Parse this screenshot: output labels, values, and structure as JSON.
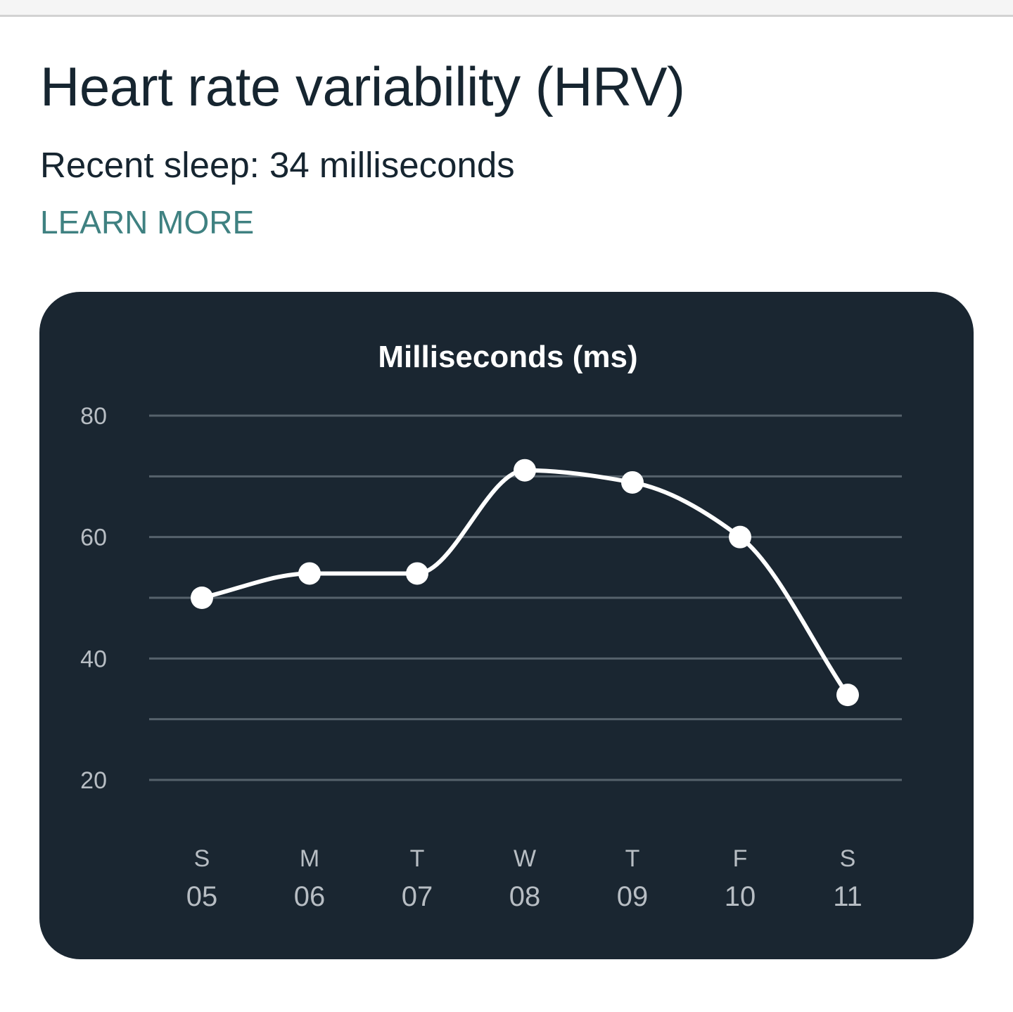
{
  "header": {
    "title": "Heart rate variability (HRV)",
    "subtitle": "Recent sleep: 34 milliseconds",
    "learn_more": "LEARN MORE"
  },
  "colors": {
    "title_text": "#162530",
    "link": "#3f8181",
    "card_background": "#1a2631",
    "gridline": "#56626c",
    "series": "#ffffff",
    "tick_text": "#b7bdc3"
  },
  "chart_data": {
    "type": "line",
    "title": "Milliseconds (ms)",
    "xlabel": "",
    "ylabel": "",
    "ylim": [
      20,
      80
    ],
    "y_ticks": [
      20,
      40,
      60,
      80
    ],
    "y_gridlines": [
      20,
      30,
      40,
      50,
      60,
      70,
      80
    ],
    "grid": true,
    "smooth": true,
    "categories": [
      {
        "day": "S",
        "date": "05"
      },
      {
        "day": "M",
        "date": "06"
      },
      {
        "day": "T",
        "date": "07"
      },
      {
        "day": "W",
        "date": "08"
      },
      {
        "day": "T",
        "date": "09"
      },
      {
        "day": "F",
        "date": "10"
      },
      {
        "day": "S",
        "date": "11"
      }
    ],
    "series": [
      {
        "values": [
          50,
          54,
          54,
          71,
          69,
          60,
          34
        ]
      }
    ]
  }
}
